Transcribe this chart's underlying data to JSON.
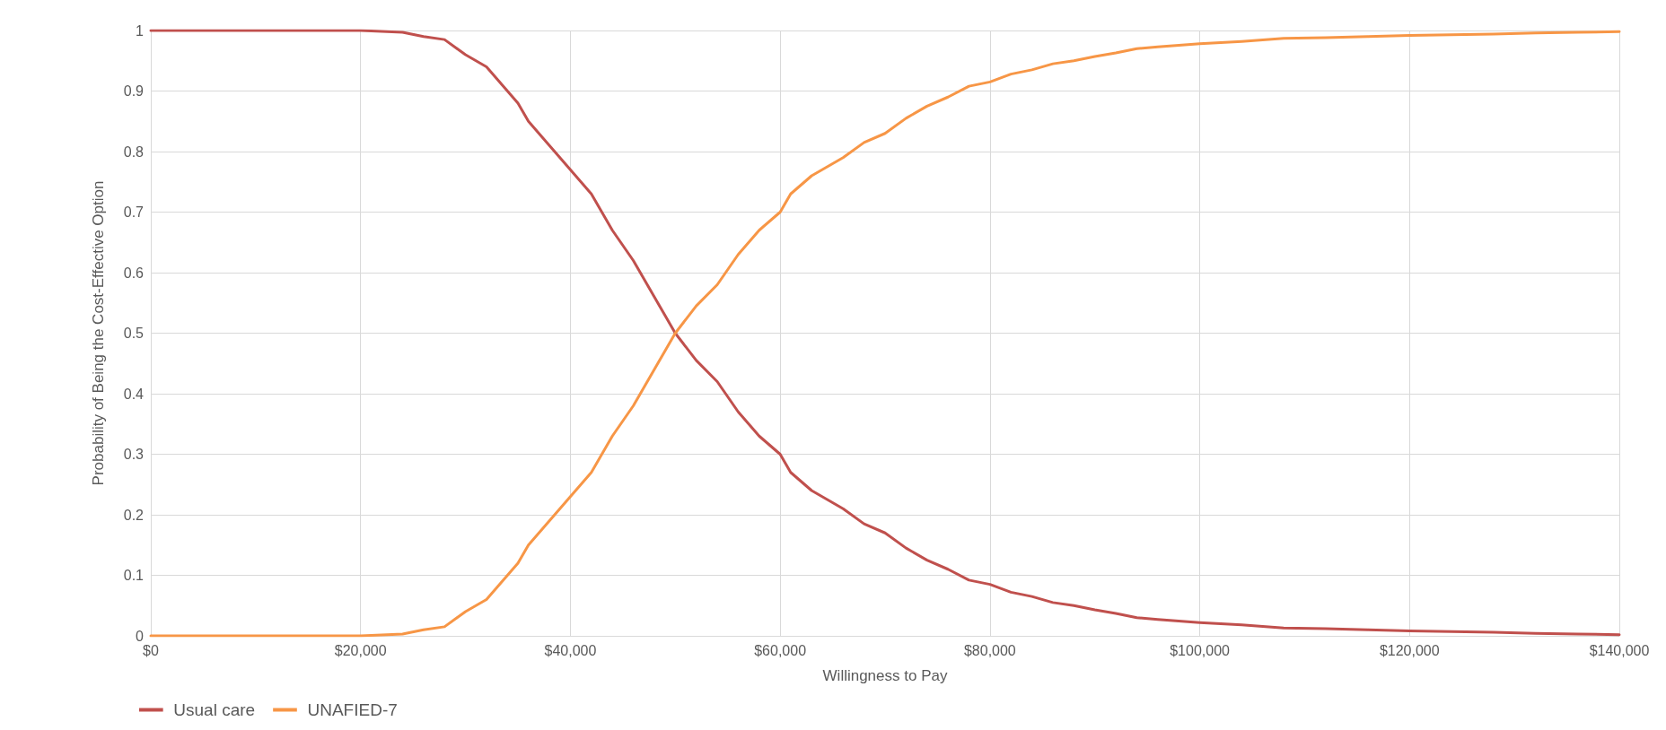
{
  "chart_data": {
    "type": "line",
    "xlabel": "Willingness to Pay",
    "ylabel": "Probability of Being the Cost-Effective Option",
    "x": [
      0,
      20000,
      24000,
      26000,
      28000,
      30000,
      32000,
      34000,
      35000,
      36000,
      38000,
      40000,
      42000,
      44000,
      46000,
      48000,
      50000,
      52000,
      54000,
      56000,
      58000,
      60000,
      61000,
      63000,
      66000,
      68000,
      70000,
      72000,
      74000,
      76000,
      78000,
      80000,
      82000,
      84000,
      86000,
      88000,
      90000,
      92000,
      94000,
      96000,
      100000,
      104000,
      108000,
      112000,
      116000,
      120000,
      124000,
      128000,
      132000,
      136000,
      140000
    ],
    "series": [
      {
        "name": "Usual care",
        "color": "#c0504d",
        "values": [
          1,
          1,
          0.997,
          0.99,
          0.985,
          0.96,
          0.94,
          0.9,
          0.88,
          0.85,
          0.81,
          0.77,
          0.73,
          0.67,
          0.62,
          0.56,
          0.5,
          0.455,
          0.42,
          0.37,
          0.33,
          0.3,
          0.27,
          0.24,
          0.21,
          0.185,
          0.17,
          0.145,
          0.125,
          0.11,
          0.092,
          0.085,
          0.072,
          0.065,
          0.055,
          0.05,
          0.043,
          0.037,
          0.03,
          0.027,
          0.022,
          0.018,
          0.013,
          0.012,
          0.01,
          0.008,
          0.007,
          0.006,
          0.004,
          0.003,
          0.002
        ]
      },
      {
        "name": "UNAFIED-7",
        "color": "#f79646",
        "values": [
          0,
          0,
          0.003,
          0.01,
          0.015,
          0.04,
          0.06,
          0.1,
          0.12,
          0.15,
          0.19,
          0.23,
          0.27,
          0.33,
          0.38,
          0.44,
          0.5,
          0.545,
          0.58,
          0.63,
          0.67,
          0.7,
          0.73,
          0.76,
          0.79,
          0.815,
          0.83,
          0.855,
          0.875,
          0.89,
          0.908,
          0.915,
          0.928,
          0.935,
          0.945,
          0.95,
          0.957,
          0.963,
          0.97,
          0.973,
          0.978,
          0.982,
          0.987,
          0.988,
          0.99,
          0.992,
          0.993,
          0.994,
          0.996,
          0.997,
          0.998
        ]
      }
    ],
    "xlim": [
      0,
      140000
    ],
    "xticks": [
      {
        "value": 0,
        "label": "$0"
      },
      {
        "value": 20000,
        "label": "$20,000"
      },
      {
        "value": 40000,
        "label": "$40,000"
      },
      {
        "value": 60000,
        "label": "$60,000"
      },
      {
        "value": 80000,
        "label": "$80,000"
      },
      {
        "value": 100000,
        "label": "$100,000"
      },
      {
        "value": 120000,
        "label": "$120,000"
      },
      {
        "value": 140000,
        "label": "$140,000"
      }
    ],
    "ylim": [
      0,
      1
    ],
    "yticks": [
      0,
      0.1,
      0.2,
      0.3,
      0.4,
      0.5,
      0.6,
      0.7,
      0.8,
      0.9,
      1
    ],
    "grid": true,
    "legend": "bottom left",
    "marker": "none",
    "line_style": "solid"
  }
}
